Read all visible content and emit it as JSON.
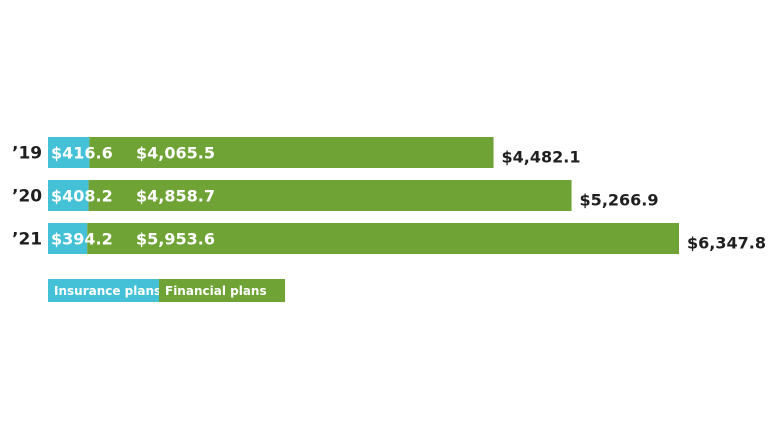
{
  "chart_data": {
    "type": "bar",
    "orientation": "horizontal",
    "stacked": true,
    "categories": [
      "’19",
      "’20",
      "’21"
    ],
    "series": [
      {
        "name": "Insurance plans",
        "color": "#44c1d7",
        "values": [
          416.6,
          408.2,
          394.2
        ],
        "labels": [
          "$416.6",
          "$408.2",
          "$394.2"
        ]
      },
      {
        "name": "Financial plans",
        "color": "#6fa336",
        "values": [
          4065.5,
          4858.7,
          5953.6
        ],
        "labels": [
          "$4,065.5",
          "$4,858.7",
          "$5,953.6"
        ]
      }
    ],
    "totals": [
      4482.1,
      5266.9,
      6347.8
    ],
    "total_labels": [
      "$4,482.1",
      "$5,266.9",
      "$6,347.8"
    ],
    "xlim": [
      0,
      6347.8
    ],
    "grid": false,
    "legend_position": "bottom-left"
  }
}
